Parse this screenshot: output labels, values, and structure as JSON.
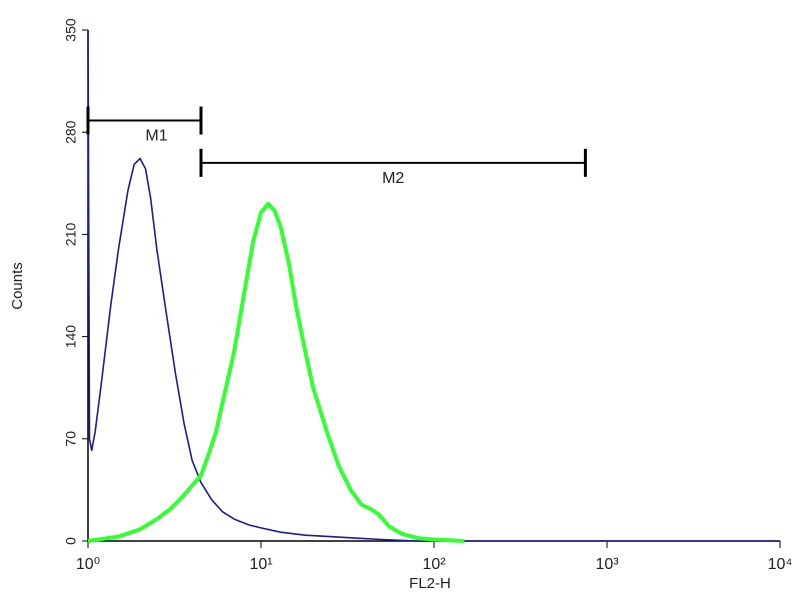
{
  "chart_data": {
    "type": "line",
    "xlabel": "FL2-H",
    "ylabel": "Counts",
    "xscale": "log",
    "xlim": [
      1,
      10000
    ],
    "xticks": [
      {
        "value": 1,
        "label": "10⁰"
      },
      {
        "value": 10,
        "label": "10¹"
      },
      {
        "value": 100,
        "label": "10²"
      },
      {
        "value": 1000,
        "label": "10³"
      },
      {
        "value": 10000,
        "label": "10⁴"
      }
    ],
    "ylim": [
      0,
      350
    ],
    "yticks": [
      0,
      70,
      140,
      210,
      280,
      350
    ],
    "series": [
      {
        "color": "#1c1c96",
        "x": [
          1,
          1.02,
          1.05,
          1.1,
          1.2,
          1.35,
          1.5,
          1.7,
          1.85,
          2.0,
          2.15,
          2.3,
          2.5,
          2.8,
          3.2,
          3.6,
          4.0,
          4.5,
          5.2,
          6.0,
          7.0,
          8.5,
          10,
          13,
          18,
          25,
          35,
          50,
          80,
          10000
        ],
        "values": [
          350,
          70,
          62,
          75,
          110,
          160,
          200,
          240,
          258,
          262,
          255,
          235,
          200,
          160,
          115,
          80,
          55,
          40,
          28,
          20,
          15,
          11,
          9,
          6,
          4,
          3,
          2,
          1,
          0,
          0
        ]
      },
      {
        "color": "#33ff33",
        "x": [
          1,
          1.5,
          2,
          2.5,
          3,
          3.5,
          4,
          4.5,
          5,
          5.5,
          6,
          7,
          8,
          9,
          10,
          11,
          12,
          13,
          14.5,
          16,
          18,
          20,
          24,
          28,
          33,
          38,
          43,
          48,
          55,
          65,
          80,
          100,
          150
        ],
        "values": [
          0,
          3,
          8,
          15,
          22,
          30,
          38,
          45,
          60,
          75,
          95,
          130,
          170,
          205,
          225,
          231,
          226,
          215,
          190,
          160,
          130,
          105,
          75,
          52,
          35,
          25,
          22,
          18,
          10,
          5,
          2,
          1,
          0
        ]
      }
    ],
    "markers": [
      {
        "label": "M1",
        "x": [
          1,
          4.5
        ],
        "y": 288
      },
      {
        "label": "M2",
        "x": [
          4.5,
          750
        ],
        "y": 259
      }
    ]
  }
}
